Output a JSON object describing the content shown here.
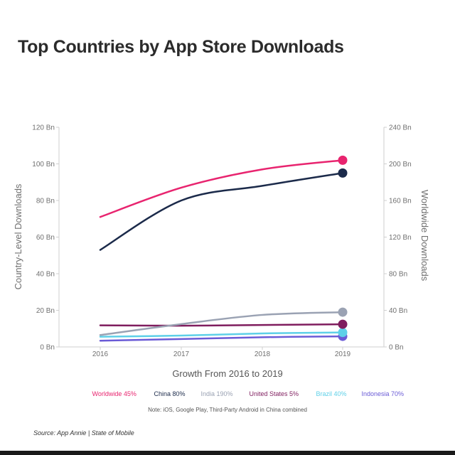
{
  "page": {
    "title": "Top Countries by App Store Downloads",
    "note": "Note: iOS, Google Play, Third-Party Android in China combined",
    "source": "Source: App Annie | State of Mobile"
  },
  "chart_data": {
    "type": "line",
    "title": "Top Countries by App Store Downloads",
    "xlabel": "Growth From 2016 to 2019",
    "ylabel": "Country-Level Downloads",
    "y2label": "Worldwide Downloads",
    "x": [
      2016,
      2017,
      2018,
      2019
    ],
    "x_tick_labels": [
      "2016",
      "2017",
      "2018",
      "2019"
    ],
    "ylim": [
      0,
      120
    ],
    "y2lim": [
      0,
      240
    ],
    "y_ticks": [
      "0 Bn",
      "20 Bn",
      "40 Bn",
      "60 Bn",
      "80 Bn",
      "100 Bn",
      "120 Bn"
    ],
    "y2_ticks": [
      "0 Bn",
      "40 Bn",
      "80 Bn",
      "120 Bn",
      "160 Bn",
      "200 Bn",
      "240 Bn"
    ],
    "series": [
      {
        "name": "Worldwide",
        "growth": "45%",
        "legend": "Worldwide 45%",
        "color": "#e8246f",
        "axis": "right",
        "values": [
          142,
          174,
          194,
          204
        ]
      },
      {
        "name": "China",
        "growth": "80%",
        "legend": "China 80%",
        "color": "#1b2a4a",
        "axis": "left",
        "values": [
          53,
          80,
          88,
          95
        ]
      },
      {
        "name": "India",
        "growth": "190%",
        "legend": "India 190%",
        "color": "#9aa2b3",
        "axis": "left",
        "values": [
          6.5,
          12.5,
          17.5,
          19
        ]
      },
      {
        "name": "United States",
        "growth": "5%",
        "legend": "United States 5%",
        "color": "#7f1d5e",
        "axis": "left",
        "values": [
          11.8,
          11.6,
          12,
          12.4
        ]
      },
      {
        "name": "Brazil",
        "growth": "40%",
        "legend": "Brazil 40%",
        "color": "#5ed0e8",
        "axis": "left",
        "values": [
          5.6,
          6.2,
          7.4,
          7.9
        ]
      },
      {
        "name": "Indonesia",
        "growth": "70%",
        "legend": "Indonesia 70%",
        "color": "#6a5bd6",
        "axis": "left",
        "values": [
          3.4,
          4.3,
          5.3,
          5.8
        ]
      }
    ]
  }
}
